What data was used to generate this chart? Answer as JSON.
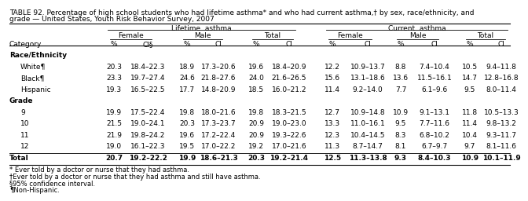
{
  "title_line1": "TABLE 92. Percentage of high school students who had lifetime asthma* and who had current asthma,† by sex, race/ethnicity, and",
  "title_line2": "grade — United States, Youth Risk Behavior Survey, 2007",
  "header1_left": "Lifetime  asthma",
  "header1_right": "Current  asthma",
  "sub_headers": [
    "Female",
    "Male",
    "Total",
    "Female",
    "Male",
    "Total"
  ],
  "col_header": "Category",
  "pct_header": "%",
  "ci_header_super": "CI§",
  "ci_header": "CI",
  "sections": [
    {
      "name": "Race/Ethnicity",
      "rows": [
        {
          "label": "White¶",
          "v": [
            "20.3",
            "18.4–22.3",
            "18.9",
            "17.3–20.6",
            "19.6",
            "18.4–20.9",
            "12.2",
            "10.9–13.7",
            "8.8",
            "7.4–10.4",
            "10.5",
            "9.4–11.8"
          ]
        },
        {
          "label": "Black¶",
          "v": [
            "23.3",
            "19.7–27.4",
            "24.6",
            "21.8–27.6",
            "24.0",
            "21.6–26.5",
            "15.6",
            "13.1–18.6",
            "13.6",
            "11.5–16.1",
            "14.7",
            "12.8–16.8"
          ]
        },
        {
          "label": "Hispanic",
          "v": [
            "19.3",
            "16.5–22.5",
            "17.7",
            "14.8–20.9",
            "18.5",
            "16.0–21.2",
            "11.4",
            "9.2–14.0",
            "7.7",
            "6.1–9.6",
            "9.5",
            "8.0–11.4"
          ]
        }
      ]
    },
    {
      "name": "Grade",
      "rows": [
        {
          "label": "9",
          "v": [
            "19.9",
            "17.5–22.4",
            "19.8",
            "18.0–21.6",
            "19.8",
            "18.3–21.5",
            "12.7",
            "10.9–14.8",
            "10.9",
            "9.1–13.1",
            "11.8",
            "10.5–13.3"
          ]
        },
        {
          "label": "10",
          "v": [
            "21.5",
            "19.0–24.1",
            "20.3",
            "17.3–23.7",
            "20.9",
            "19.0–23.0",
            "13.3",
            "11.0–16.1",
            "9.5",
            "7.7–11.6",
            "11.4",
            "9.8–13.2"
          ]
        },
        {
          "label": "11",
          "v": [
            "21.9",
            "19.8–24.2",
            "19.6",
            "17.2–22.4",
            "20.9",
            "19.3–22.6",
            "12.3",
            "10.4–14.5",
            "8.3",
            "6.8–10.2",
            "10.4",
            "9.3–11.7"
          ]
        },
        {
          "label": "12",
          "v": [
            "19.0",
            "16.1–22.3",
            "19.5",
            "17.0–22.2",
            "19.2",
            "17.0–21.6",
            "11.3",
            "8.7–14.7",
            "8.1",
            "6.7–9.7",
            "9.7",
            "8.1–11.6"
          ]
        }
      ]
    }
  ],
  "total": {
    "label": "Total",
    "v": [
      "20.7",
      "19.2–22.2",
      "19.9",
      "18.6–21.3",
      "20.3",
      "19.2–21.4",
      "12.5",
      "11.3–13.8",
      "9.3",
      "8.4–10.3",
      "10.9",
      "10.1–11.9"
    ]
  },
  "footnotes": [
    "* Ever told by a doctor or nurse that they had asthma.",
    "†Ever told by a doctor or nurse that they had asthma and still have asthma.",
    "§95% confidence interval.",
    "¶Non-Hispanic."
  ]
}
